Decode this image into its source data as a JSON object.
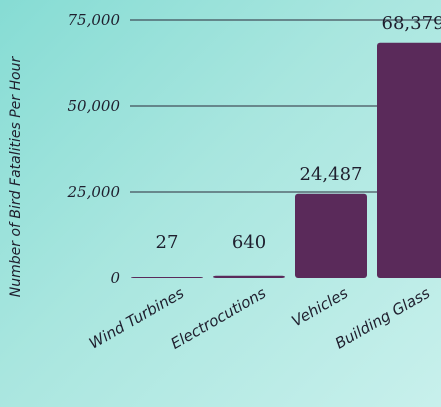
{
  "chart_data": {
    "type": "bar",
    "categories": [
      "Wind Turbines",
      "Electrocutions",
      "Vehicles",
      "Building Glass"
    ],
    "values": [
      27,
      640,
      24487,
      68379
    ],
    "value_labels": [
      "27",
      "640",
      "24,487",
      "68,379"
    ],
    "ylabel": "Number of Bird Fatalities Per Hour",
    "ylim": [
      0,
      75000
    ],
    "yticks": [
      0,
      25000,
      50000,
      75000
    ],
    "ytick_labels": [
      "0",
      "25,000",
      "50,000",
      "75,000"
    ],
    "grid": true,
    "colors": {
      "bar": "#5a2a5a",
      "grid": "#2a2a3a"
    }
  }
}
